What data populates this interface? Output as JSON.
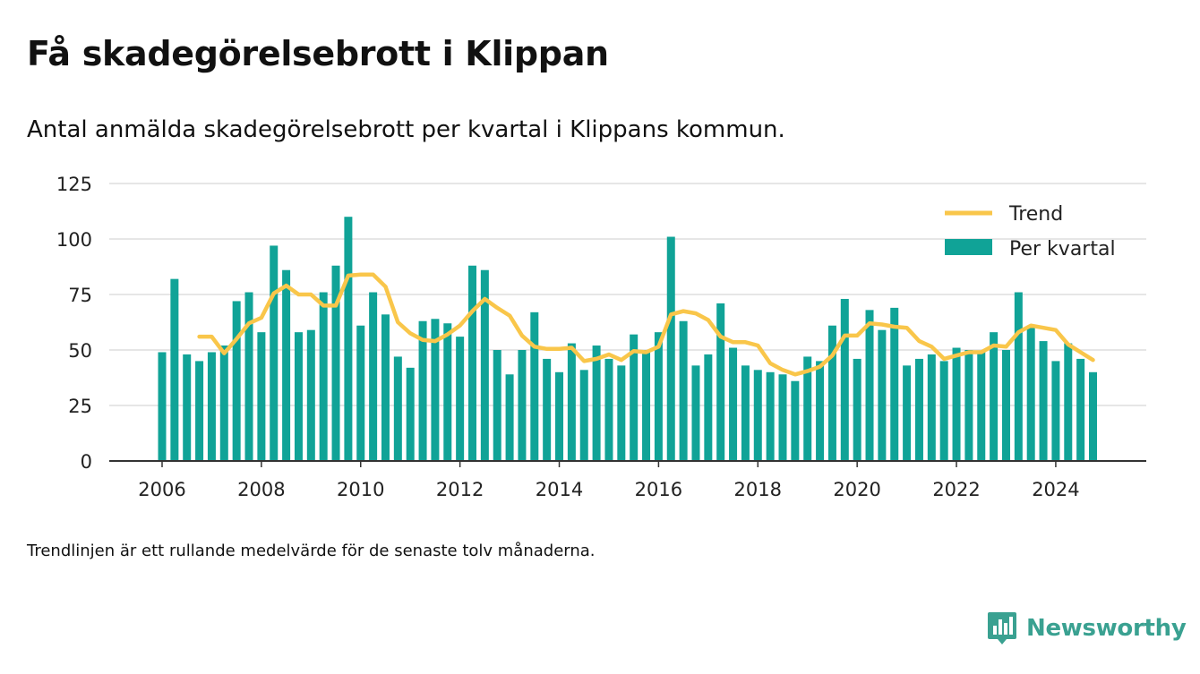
{
  "title": "Få skadegörelsebrott i Klippan",
  "subtitle": "Antal anmälda skadegörelsebrott per kvartal i Klippans kommun.",
  "note": "Trendlinjen är ett rullande medelvärde för de senaste tolv månaderna.",
  "brand": "Newsworthy",
  "colors": {
    "bar": "#10a397",
    "trend": "#f9c64a",
    "grid": "#dddddd",
    "axis": "#333333",
    "brand": "#3aa191"
  },
  "chart_data": {
    "type": "bar",
    "title": "",
    "xlabel": "",
    "ylabel": "",
    "ylim": [
      0,
      125
    ],
    "yticks": [
      "0",
      "25",
      "50",
      "75",
      "100",
      "125"
    ],
    "xticks": [
      "2006",
      "2008",
      "2010",
      "2012",
      "2014",
      "2016",
      "2018",
      "2020",
      "2022",
      "2024"
    ],
    "grid": true,
    "legend_position": "top-right",
    "start_quarter": "2006 Q1",
    "series": [
      {
        "name": "Per kvartal",
        "type": "bar",
        "values": [
          49,
          82,
          48,
          45,
          49,
          52,
          72,
          76,
          58,
          97,
          86,
          58,
          59,
          76,
          88,
          110,
          61,
          76,
          66,
          47,
          42,
          63,
          64,
          62,
          56,
          88,
          86,
          50,
          39,
          50,
          67,
          46,
          40,
          53,
          41,
          52,
          46,
          43,
          57,
          50,
          58,
          101,
          63,
          43,
          48,
          71,
          51,
          43,
          41,
          40,
          39,
          36,
          47,
          45,
          61,
          73,
          46,
          68,
          59,
          69,
          43,
          46,
          48,
          45,
          51,
          50,
          49,
          58,
          50,
          76,
          60,
          54,
          45,
          53,
          46,
          40
        ]
      },
      {
        "name": "Trend",
        "type": "line",
        "values": [
          null,
          null,
          null,
          56,
          56,
          48.5,
          55,
          62,
          64.5,
          75.5,
          79,
          75,
          75,
          70,
          70,
          83.5,
          84,
          84,
          78.5,
          62.5,
          57.5,
          54.5,
          54,
          57,
          61,
          67.5,
          73,
          69,
          65.5,
          56.5,
          51.5,
          50.5,
          50.5,
          51,
          45,
          46,
          48,
          45.5,
          49.5,
          49,
          51.5,
          66,
          67.5,
          66.5,
          63.5,
          56,
          53.5,
          53.5,
          52,
          44,
          41,
          39,
          40.5,
          42.5,
          47.5,
          56.5,
          56.5,
          62,
          61.5,
          60.5,
          60,
          54,
          51.5,
          46,
          47.5,
          49,
          49,
          52,
          51.5,
          58,
          61,
          60,
          59,
          52.5,
          49,
          45.5
        ]
      }
    ]
  }
}
